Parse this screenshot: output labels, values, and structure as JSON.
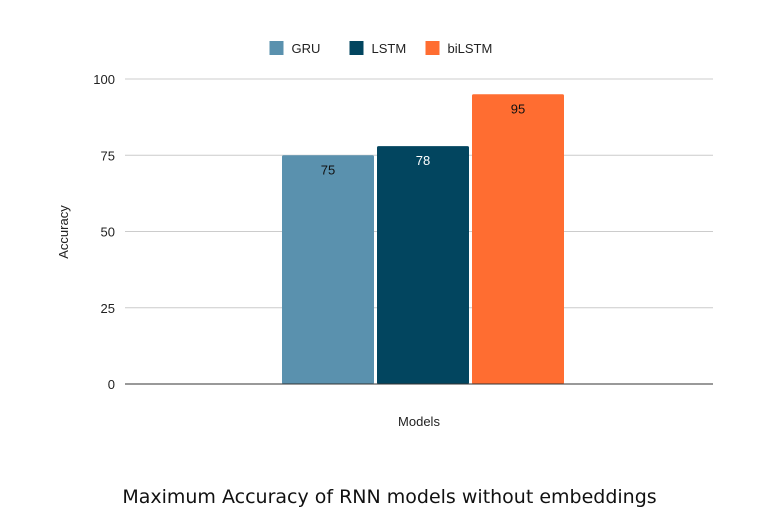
{
  "chart_data": {
    "type": "bar",
    "title": "",
    "xlabel": "Models",
    "ylabel": "Accuracy",
    "ylim": [
      0,
      100
    ],
    "yticks": [
      0,
      25,
      50,
      75,
      100
    ],
    "categories": [
      ""
    ],
    "grid": true,
    "legend_position": "top",
    "series": [
      {
        "name": "GRU",
        "values": [
          75
        ],
        "color": "#5a91ae",
        "label_color": "#111111"
      },
      {
        "name": "LSTM",
        "values": [
          78
        ],
        "color": "#02455f",
        "label_color": "#ffffff"
      },
      {
        "name": "biLSTM",
        "values": [
          95
        ],
        "color": "#ff6d31",
        "label_color": "#111111"
      }
    ]
  },
  "caption": "Maximum Accuracy of RNN models without embeddings"
}
